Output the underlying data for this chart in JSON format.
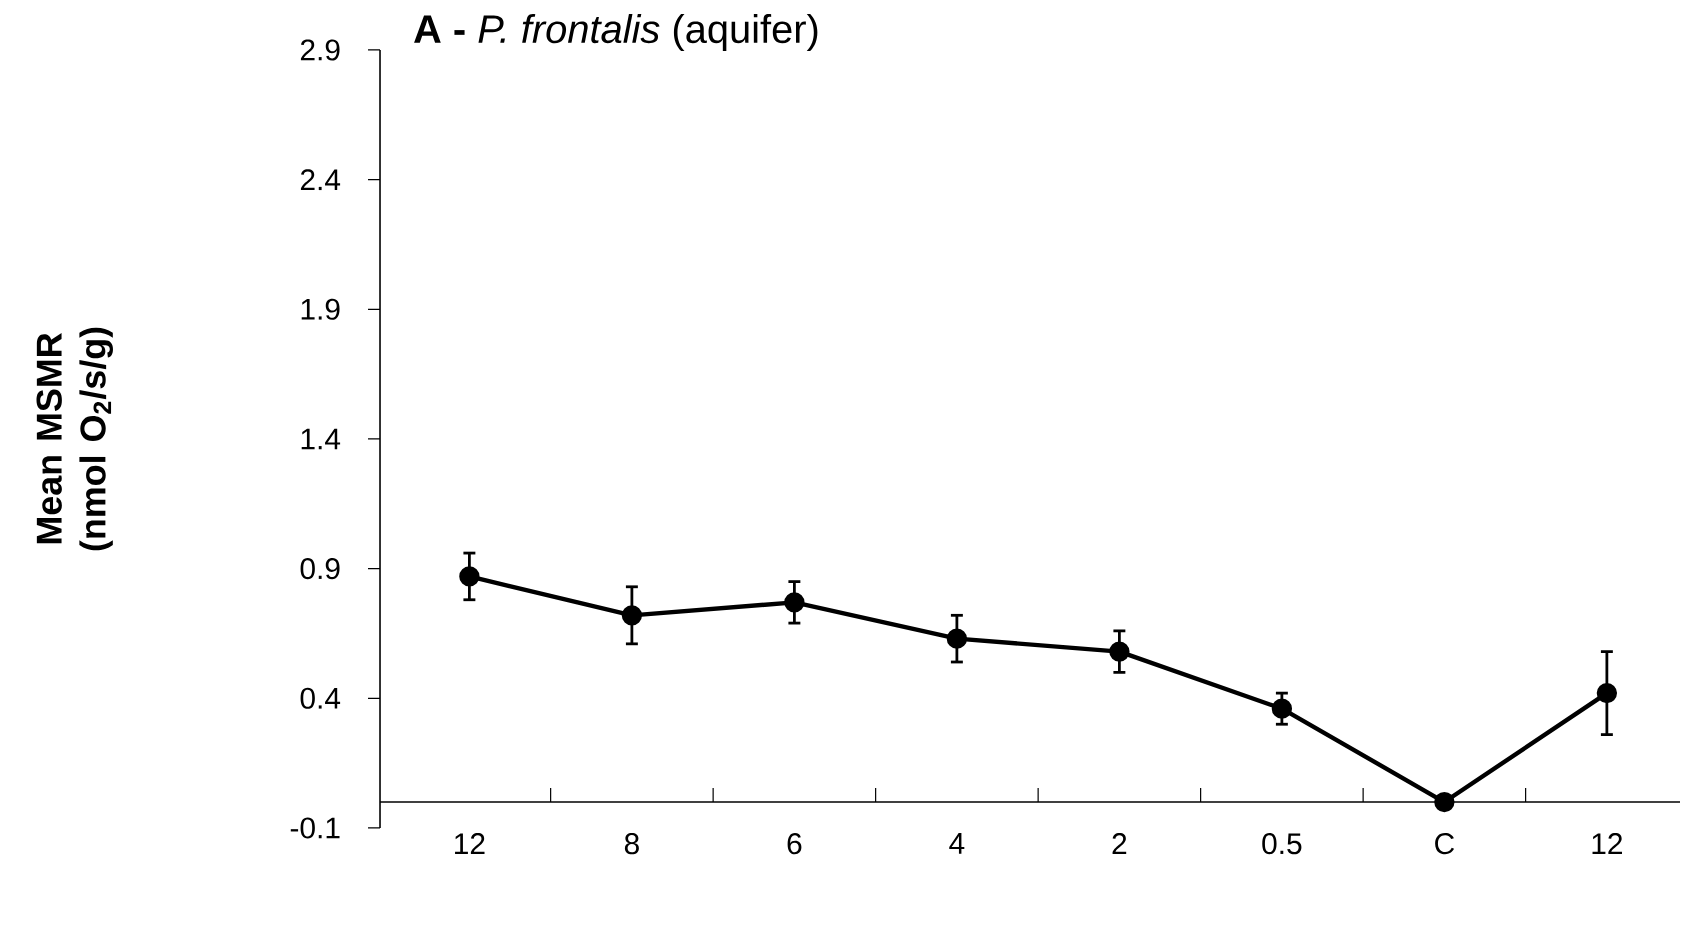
{
  "chart_data": {
    "type": "line",
    "title": "**A -** *P. frontalis* (aquifer)",
    "ylabel": "Mean MSMR (nmol O$_{2}$/s/g)",
    "categories": [
      "12",
      "8",
      "6",
      "4",
      "2",
      "0.5",
      "C",
      "12"
    ],
    "series": [
      {
        "color": "#000000",
        "values": [
          0.87,
          0.72,
          0.77,
          0.63,
          0.58,
          0.36,
          0.0,
          0.42
        ],
        "errors": [
          0.09,
          0.11,
          0.08,
          0.09,
          0.08,
          0.06,
          null,
          0.16
        ]
      }
    ],
    "ylim": [
      -0.1,
      2.9
    ],
    "yticks": [
      -0.1,
      0.4,
      0.9,
      1.4,
      1.9,
      2.4,
      2.9
    ],
    "marker": "circle",
    "line_style": "solid"
  }
}
